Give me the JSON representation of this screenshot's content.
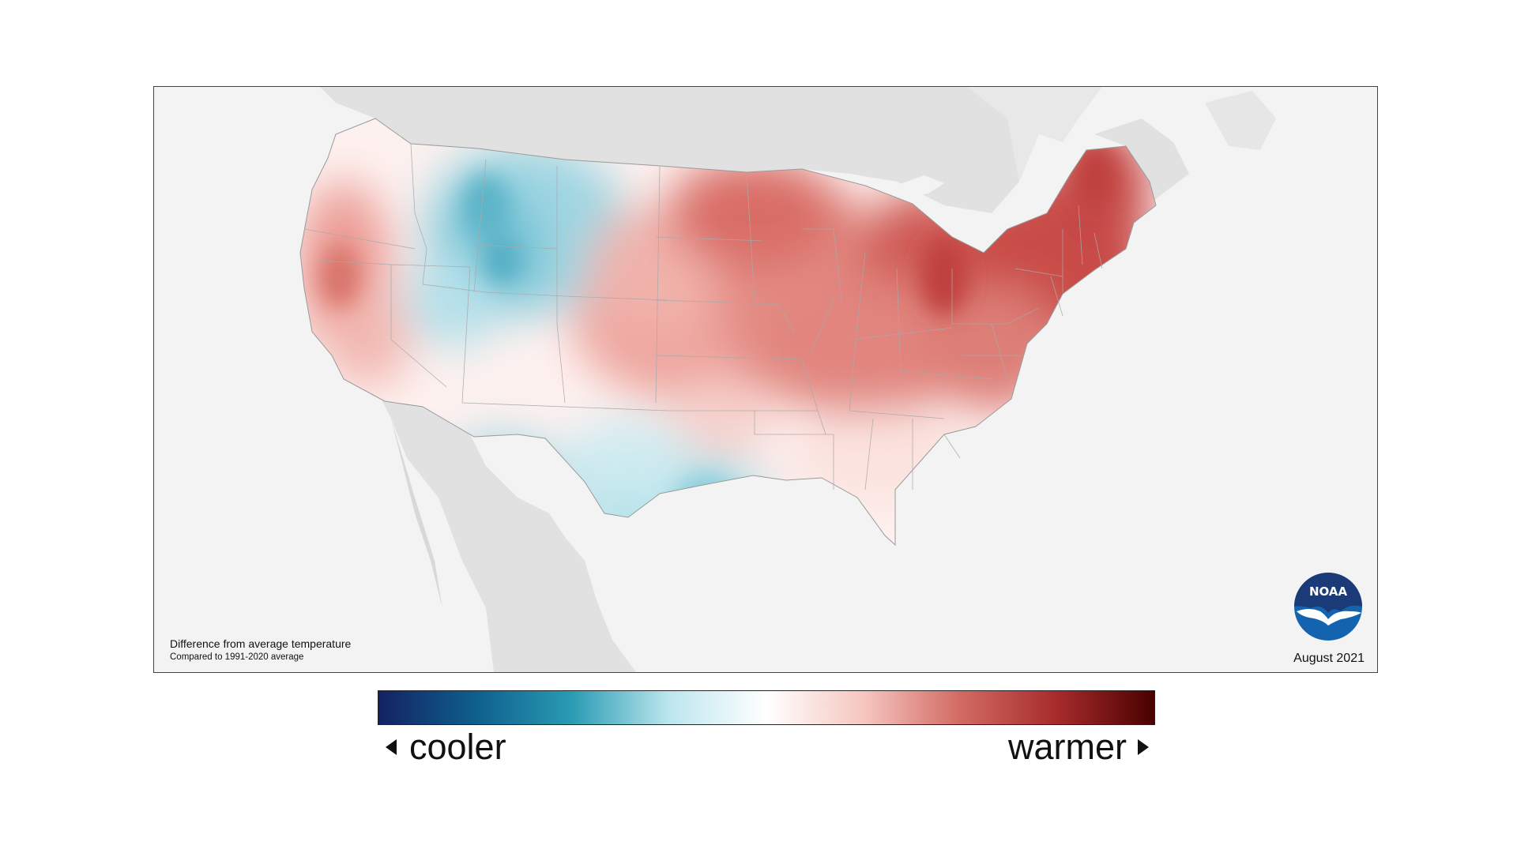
{
  "map": {
    "caption_title": "Difference from average temperature",
    "caption_subtitle": "Compared to 1991-2020 average",
    "date": "August 2021",
    "logo_text": "NOAA",
    "background_color": "#f3f3f3",
    "land_color": "#e1e1e1",
    "anomaly_pattern": {
      "cooler_regions": [
        "Northern Rockies (Idaho, Montana, Wyoming)",
        "Utah",
        "Arizona",
        "New Mexico",
        "Texas"
      ],
      "warmer_regions": [
        "California coast",
        "Great Plains",
        "Upper Midwest",
        "Great Lakes",
        "Ohio Valley",
        "Mid-Atlantic",
        "New England"
      ]
    }
  },
  "legend": {
    "cooler_label": "cooler",
    "warmer_label": "warmer",
    "colors": [
      "#142262",
      "#0e5f8d",
      "#2a9cb3",
      "#bde6ee",
      "#ffffff",
      "#f6c6c0",
      "#d26a63",
      "#a62b2b",
      "#4a0000"
    ]
  }
}
